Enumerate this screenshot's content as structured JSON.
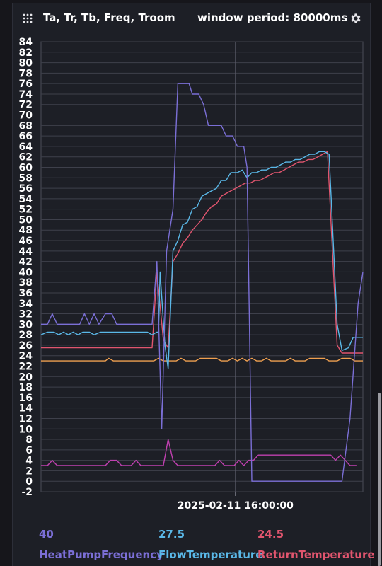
{
  "header": {
    "title": "Ta, Tr, Tb, Freq, Troom",
    "period": "window period: 80000ms"
  },
  "icons": {
    "menu": "grid-dots-icon",
    "settings": "gear-icon"
  },
  "chart_data": {
    "type": "line",
    "title": "Ta, Tr, Tb, Freq, Troom",
    "ylim": [
      -2,
      84
    ],
    "y_ticks": [
      84,
      82,
      80,
      78,
      76,
      74,
      72,
      70,
      68,
      66,
      64,
      62,
      60,
      58,
      56,
      54,
      52,
      50,
      48,
      46,
      44,
      42,
      40,
      38,
      36,
      34,
      32,
      30,
      28,
      26,
      24,
      22,
      20,
      18,
      16,
      14,
      12,
      10,
      8,
      6,
      4,
      2,
      0,
      -2
    ],
    "x_tick_label": "2025-02-11 16:00:00",
    "x_tick_pos": 0.604,
    "grid": true,
    "legend_position": "bottom",
    "series": [
      {
        "name": "HeatPumpFrequency",
        "current": "40",
        "color": "#7b6fd6",
        "points": [
          [
            0,
            30
          ],
          [
            0.02,
            30
          ],
          [
            0.035,
            32
          ],
          [
            0.05,
            30
          ],
          [
            0.12,
            30
          ],
          [
            0.135,
            32
          ],
          [
            0.15,
            30
          ],
          [
            0.165,
            32
          ],
          [
            0.18,
            30
          ],
          [
            0.2,
            32
          ],
          [
            0.22,
            32
          ],
          [
            0.235,
            30
          ],
          [
            0.33,
            30
          ],
          [
            0.345,
            30
          ],
          [
            0.36,
            42
          ],
          [
            0.375,
            10
          ],
          [
            0.39,
            44
          ],
          [
            0.41,
            52
          ],
          [
            0.425,
            76
          ],
          [
            0.46,
            76
          ],
          [
            0.47,
            74
          ],
          [
            0.49,
            74
          ],
          [
            0.505,
            72
          ],
          [
            0.52,
            68
          ],
          [
            0.56,
            68
          ],
          [
            0.575,
            66
          ],
          [
            0.595,
            66
          ],
          [
            0.61,
            64
          ],
          [
            0.63,
            64
          ],
          [
            0.64,
            60
          ],
          [
            0.655,
            0
          ],
          [
            0.935,
            0
          ],
          [
            0.96,
            12
          ],
          [
            0.985,
            34
          ],
          [
            1.0,
            40
          ]
        ]
      },
      {
        "name": "FlowTemperature",
        "current": "27.5",
        "color": "#5ab8e8",
        "points": [
          [
            0,
            28
          ],
          [
            0.02,
            28.5
          ],
          [
            0.04,
            28.5
          ],
          [
            0.055,
            28
          ],
          [
            0.07,
            28.5
          ],
          [
            0.085,
            28
          ],
          [
            0.1,
            28.5
          ],
          [
            0.115,
            28
          ],
          [
            0.13,
            28.5
          ],
          [
            0.15,
            28.5
          ],
          [
            0.165,
            28
          ],
          [
            0.185,
            28.5
          ],
          [
            0.2,
            28.5
          ],
          [
            0.33,
            28.5
          ],
          [
            0.345,
            28
          ],
          [
            0.36,
            28.5
          ],
          [
            0.365,
            28.5
          ],
          [
            0.37,
            40
          ],
          [
            0.385,
            26
          ],
          [
            0.395,
            21.5
          ],
          [
            0.41,
            44
          ],
          [
            0.425,
            46
          ],
          [
            0.44,
            49
          ],
          [
            0.455,
            49.5
          ],
          [
            0.47,
            52
          ],
          [
            0.485,
            52.5
          ],
          [
            0.5,
            54.5
          ],
          [
            0.515,
            55
          ],
          [
            0.53,
            55.5
          ],
          [
            0.545,
            56
          ],
          [
            0.56,
            57.5
          ],
          [
            0.575,
            57.5
          ],
          [
            0.59,
            59
          ],
          [
            0.61,
            59
          ],
          [
            0.625,
            59.5
          ],
          [
            0.64,
            58
          ],
          [
            0.655,
            59
          ],
          [
            0.67,
            59
          ],
          [
            0.685,
            59.5
          ],
          [
            0.7,
            59.5
          ],
          [
            0.715,
            60
          ],
          [
            0.73,
            60
          ],
          [
            0.745,
            60.5
          ],
          [
            0.76,
            61
          ],
          [
            0.775,
            61
          ],
          [
            0.79,
            61.5
          ],
          [
            0.805,
            61.5
          ],
          [
            0.82,
            62
          ],
          [
            0.835,
            62.5
          ],
          [
            0.85,
            62.5
          ],
          [
            0.865,
            63
          ],
          [
            0.88,
            63
          ],
          [
            0.895,
            62.5
          ],
          [
            0.92,
            30
          ],
          [
            0.935,
            25
          ],
          [
            0.955,
            25.5
          ],
          [
            0.97,
            27.5
          ],
          [
            1.0,
            27.5
          ]
        ]
      },
      {
        "name": "ReturnTemperature",
        "current": "24.5",
        "color": "#e0556e",
        "points": [
          [
            0,
            25.5
          ],
          [
            0.33,
            25.5
          ],
          [
            0.345,
            25.5
          ],
          [
            0.36,
            40
          ],
          [
            0.38,
            27
          ],
          [
            0.395,
            25.5
          ],
          [
            0.41,
            42
          ],
          [
            0.425,
            43.5
          ],
          [
            0.44,
            45.5
          ],
          [
            0.455,
            46.5
          ],
          [
            0.47,
            48
          ],
          [
            0.485,
            49
          ],
          [
            0.5,
            50
          ],
          [
            0.515,
            51.5
          ],
          [
            0.53,
            52.5
          ],
          [
            0.545,
            53
          ],
          [
            0.56,
            54.5
          ],
          [
            0.575,
            55
          ],
          [
            0.59,
            55.5
          ],
          [
            0.605,
            56
          ],
          [
            0.62,
            56.5
          ],
          [
            0.635,
            57
          ],
          [
            0.65,
            57
          ],
          [
            0.665,
            57.5
          ],
          [
            0.68,
            57.5
          ],
          [
            0.695,
            58
          ],
          [
            0.71,
            58.5
          ],
          [
            0.725,
            59
          ],
          [
            0.74,
            59
          ],
          [
            0.755,
            59.5
          ],
          [
            0.77,
            60
          ],
          [
            0.785,
            60.5
          ],
          [
            0.8,
            61
          ],
          [
            0.815,
            61
          ],
          [
            0.83,
            61.5
          ],
          [
            0.845,
            61.5
          ],
          [
            0.86,
            62
          ],
          [
            0.875,
            62.5
          ],
          [
            0.89,
            63
          ],
          [
            0.92,
            26
          ],
          [
            0.935,
            24.5
          ],
          [
            1.0,
            24.5
          ]
        ]
      },
      {
        "name": "",
        "current": "",
        "color": "#f0a050",
        "points": [
          [
            0,
            23
          ],
          [
            0.2,
            23
          ],
          [
            0.21,
            23.5
          ],
          [
            0.225,
            23
          ],
          [
            0.35,
            23
          ],
          [
            0.365,
            23.5
          ],
          [
            0.38,
            23
          ],
          [
            0.42,
            23
          ],
          [
            0.435,
            23.5
          ],
          [
            0.45,
            23
          ],
          [
            0.48,
            23
          ],
          [
            0.495,
            23.5
          ],
          [
            0.545,
            23.5
          ],
          [
            0.56,
            23
          ],
          [
            0.58,
            23
          ],
          [
            0.595,
            23.5
          ],
          [
            0.61,
            23
          ],
          [
            0.625,
            23.5
          ],
          [
            0.64,
            23
          ],
          [
            0.655,
            23.5
          ],
          [
            0.67,
            23
          ],
          [
            0.685,
            23
          ],
          [
            0.7,
            23.5
          ],
          [
            0.715,
            23
          ],
          [
            0.76,
            23
          ],
          [
            0.775,
            23.5
          ],
          [
            0.79,
            23
          ],
          [
            0.82,
            23
          ],
          [
            0.835,
            23.5
          ],
          [
            0.88,
            23.5
          ],
          [
            0.895,
            23
          ],
          [
            0.92,
            23
          ],
          [
            0.935,
            23.5
          ],
          [
            0.96,
            23.5
          ],
          [
            0.975,
            23
          ],
          [
            1.0,
            23
          ]
        ]
      },
      {
        "name": "",
        "current": "",
        "color": "#c040b0",
        "points": [
          [
            0,
            3
          ],
          [
            0.02,
            3
          ],
          [
            0.035,
            4
          ],
          [
            0.05,
            3
          ],
          [
            0.2,
            3
          ],
          [
            0.215,
            4
          ],
          [
            0.235,
            4
          ],
          [
            0.25,
            3
          ],
          [
            0.28,
            3
          ],
          [
            0.295,
            4
          ],
          [
            0.31,
            3
          ],
          [
            0.38,
            3
          ],
          [
            0.395,
            8
          ],
          [
            0.41,
            4
          ],
          [
            0.425,
            3
          ],
          [
            0.54,
            3
          ],
          [
            0.555,
            4
          ],
          [
            0.57,
            3
          ],
          [
            0.6,
            3
          ],
          [
            0.615,
            4
          ],
          [
            0.63,
            3
          ],
          [
            0.645,
            4
          ],
          [
            0.66,
            4
          ],
          [
            0.675,
            5
          ],
          [
            0.685,
            5
          ],
          [
            0.9,
            5
          ],
          [
            0.915,
            4
          ],
          [
            0.93,
            5
          ],
          [
            0.945,
            4
          ],
          [
            0.96,
            3
          ],
          [
            0.98,
            3
          ]
        ]
      }
    ]
  }
}
